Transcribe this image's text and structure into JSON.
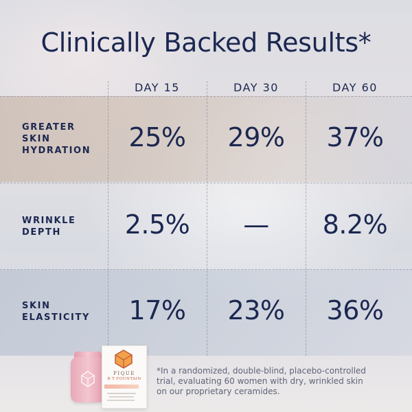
{
  "title": "Clinically Backed Results*",
  "columns": [
    "DAY 15",
    "DAY 30",
    "DAY 60"
  ],
  "rows": [
    {
      "label_lines": [
        "GREATER",
        "SKIN",
        "HYDRATION"
      ],
      "values": [
        "25%",
        "29%",
        "37%"
      ]
    },
    {
      "label_lines": [
        "WRINKLE",
        "DEPTH"
      ],
      "values": [
        "2.5%",
        "—",
        "8.2%"
      ]
    },
    {
      "label_lines": [
        "SKIN",
        "ELASTICITY"
      ],
      "values": [
        "17%",
        "23%",
        "36%"
      ]
    }
  ],
  "footnote_lines": [
    "*In a randomized, double-blind, placebo-controlled",
    "trial, evaluating 60 women with dry, wrinkled skin",
    "on our proprietary ceramides."
  ],
  "product": {
    "brand": "PIQUE",
    "name": "B·T FOUNTAIN",
    "accent": "#c15a3a",
    "jar_color": "#efb6c3"
  }
}
